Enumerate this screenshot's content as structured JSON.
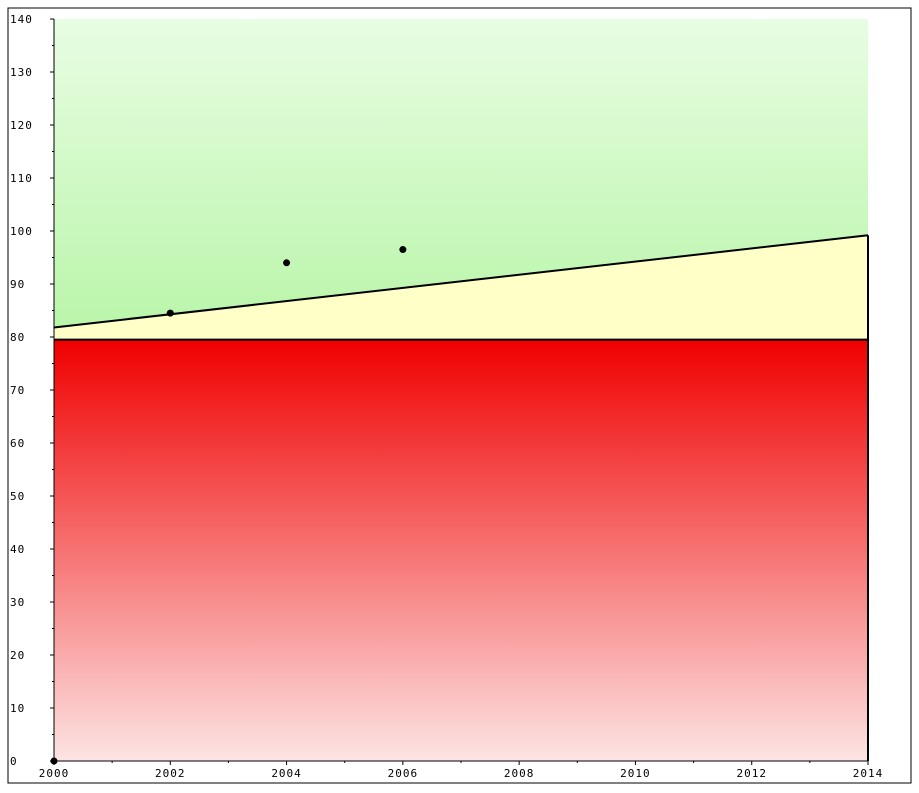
{
  "chart_data": {
    "type": "scatter",
    "title": "",
    "xlabel": "",
    "ylabel": "",
    "xlim": [
      2000,
      2014
    ],
    "ylim": [
      0,
      140
    ],
    "x_ticks": [
      2000,
      2002,
      2004,
      2006,
      2008,
      2010,
      2012,
      2014
    ],
    "y_ticks": [
      0,
      10,
      20,
      30,
      40,
      50,
      60,
      70,
      80,
      90,
      100,
      110,
      120,
      130,
      140
    ],
    "x_tick_labels": [
      "2000",
      "2002",
      "2004",
      "2006",
      "2008",
      "2010",
      "2012",
      "2014"
    ],
    "y_tick_labels": [
      "0",
      "10",
      "20",
      "30",
      "40",
      "50",
      "60",
      "70",
      "80",
      "90",
      "100",
      "110",
      "120",
      "130",
      "140"
    ],
    "grid": false,
    "legend": "none",
    "series": [
      {
        "x": [
          2000,
          2002,
          2004,
          2006
        ],
        "y": [
          0,
          84.5,
          94,
          96.5
        ],
        "marker": "dot",
        "color": "#000000"
      }
    ],
    "reference_lines": [
      {
        "kind": "threshold",
        "x": [
          2000,
          2014
        ],
        "y": [
          81.8,
          99.2
        ],
        "color": "#000000"
      },
      {
        "kind": "horizontal",
        "x": [
          2000,
          2014
        ],
        "y": [
          79.5,
          79.5
        ],
        "color": "#000000"
      }
    ],
    "bands": [
      {
        "zone": "below",
        "y_from": 0,
        "y_to": 79.5,
        "colors": [
          "#fde4e4",
          "#f00000"
        ]
      },
      {
        "zone": "middle",
        "y_from": 79.5,
        "y_to": "threshold",
        "color": "#ffffc8"
      },
      {
        "zone": "above",
        "y_from": "threshold",
        "y_to": 140,
        "colors": [
          "#b8f5a8",
          "#e8fde3"
        ]
      }
    ]
  }
}
